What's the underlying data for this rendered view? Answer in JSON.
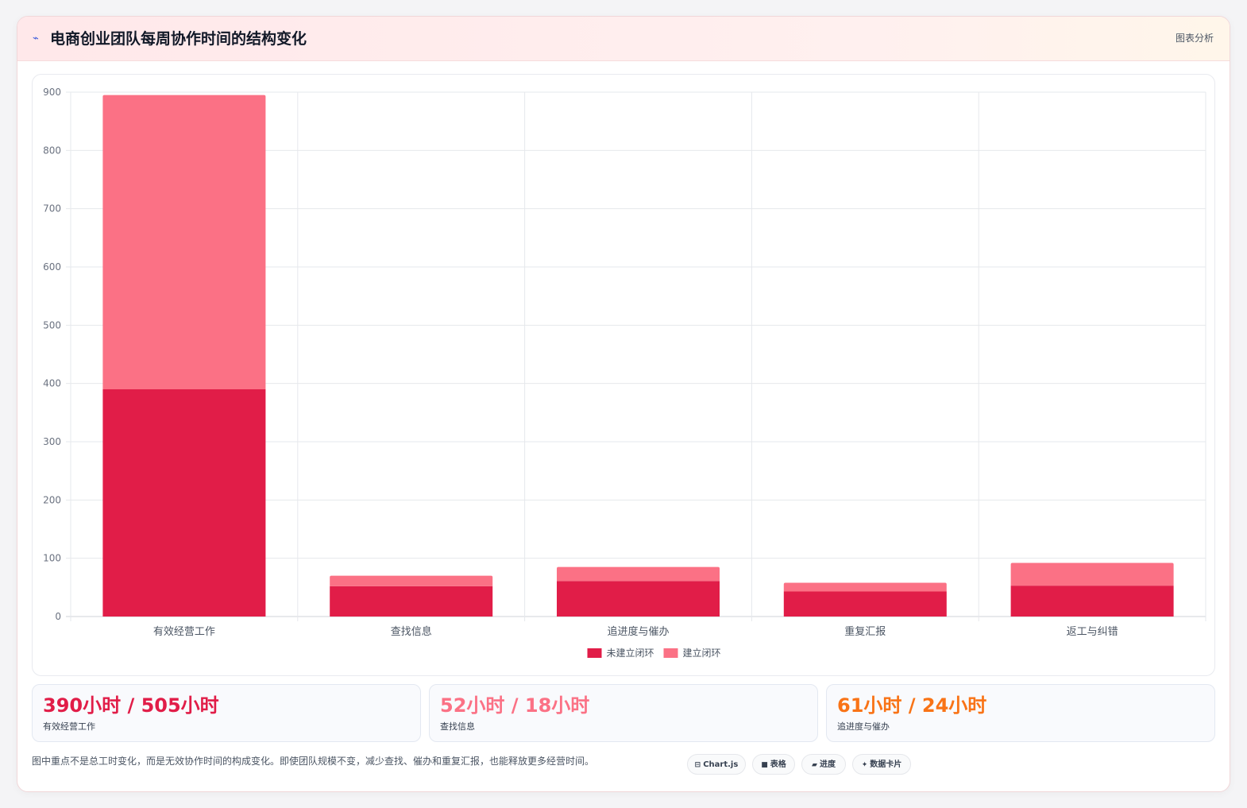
{
  "header": {
    "icon": "trend-icon",
    "title": "电商创业团队每周协作时间的结构变化",
    "tag": "图表分析"
  },
  "chart_data": {
    "type": "bar",
    "stacked": true,
    "categories": [
      "有效经营工作",
      "查找信息",
      "追进度与催办",
      "重复汇报",
      "返工与纠错"
    ],
    "series": [
      {
        "name": "未建立闭环",
        "color": "#e11d48",
        "values": [
          390,
          52,
          61,
          43,
          53
        ]
      },
      {
        "name": "建立闭环",
        "color": "#fb7185",
        "values": [
          505,
          18,
          24,
          15,
          39
        ]
      }
    ],
    "y_ticks": [
      "0",
      "100",
      "200",
      "300",
      "400",
      "500",
      "600",
      "700",
      "800",
      "900"
    ],
    "ylim": [
      0,
      900
    ],
    "grid": true,
    "legend_position": "bottom"
  },
  "stats": [
    {
      "value": "390小时 / 505小时",
      "label": "有效经营工作",
      "color": "#e11d48"
    },
    {
      "value": "52小时 / 18小时",
      "label": "查找信息",
      "color": "#fb7185"
    },
    {
      "value": "61小时 / 24小时",
      "label": "追进度与催办",
      "color": "#f97316"
    }
  ],
  "footer": {
    "note": "图中重点不是总工时变化，而是无效协作时间的构成变化。即使团队规模不变，减少查找、催办和重复汇报，也能释放更多经营时间。",
    "pills": [
      {
        "icon": "chart-icon",
        "glyph": "⊟",
        "label": "Chart.js"
      },
      {
        "icon": "table-icon",
        "glyph": "■",
        "label": "表格"
      },
      {
        "icon": "progress-icon",
        "glyph": "▰",
        "label": "进度"
      },
      {
        "icon": "sparkle-icon",
        "glyph": "✦",
        "label": "数据卡片"
      }
    ]
  }
}
